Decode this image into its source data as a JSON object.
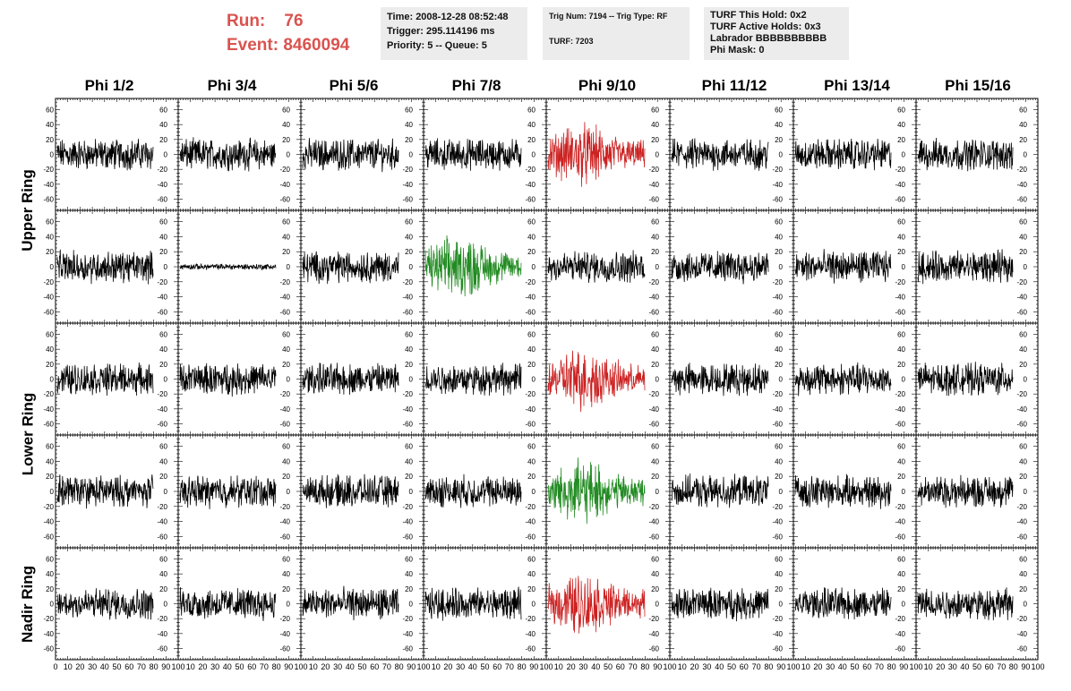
{
  "header": {
    "run_label": "Run:",
    "run_value": "76",
    "event_label": "Event:",
    "event_value": "8460094",
    "time": "Time: 2008-12-28 08:52:48",
    "trigger": "Trigger: 295.114196 ms",
    "priority": "Priority: 5 -- Queue: 5",
    "trig_num": "Trig Num: 7194 -- Trig Type: RF",
    "turf": "TURF: 7203",
    "turf_this_hold": "TURF This Hold: 0x2",
    "turf_active_holds": "TURF Active Holds: 0x3",
    "labrador": "Labrador BBBBBBBBBB",
    "phi_mask": "Phi Mask: 0"
  },
  "columns": [
    "Phi 1/2",
    "Phi 3/4",
    "Phi 5/6",
    "Phi 7/8",
    "Phi 9/10",
    "Phi 11/12",
    "Phi 13/14",
    "Phi 15/16"
  ],
  "ring_labels": [
    "Upper Ring",
    "Lower Ring",
    "Nadir Ring"
  ],
  "colors": {
    "normal": "#000000",
    "red": "#cc2222",
    "green": "#228b22",
    "accent": "#d9534f",
    "panel": "#ececec"
  },
  "chart_data": {
    "type": "line",
    "rows": 5,
    "cols": 8,
    "ylim": [
      -75,
      75
    ],
    "yticks": [
      -60,
      -40,
      -20,
      0,
      20,
      40,
      60
    ],
    "xlim": [
      0,
      100
    ],
    "xticks": [
      0,
      10,
      20,
      30,
      40,
      50,
      60,
      70,
      80,
      90,
      100
    ],
    "highlights": [
      {
        "row": 0,
        "col": 4,
        "color": "red"
      },
      {
        "row": 1,
        "col": 3,
        "color": "green"
      },
      {
        "row": 2,
        "col": 4,
        "color": "red"
      },
      {
        "row": 3,
        "col": 4,
        "color": "green"
      },
      {
        "row": 4,
        "col": 4,
        "color": "red"
      }
    ],
    "quiet_panels": [
      {
        "row": 1,
        "col": 1
      }
    ]
  }
}
